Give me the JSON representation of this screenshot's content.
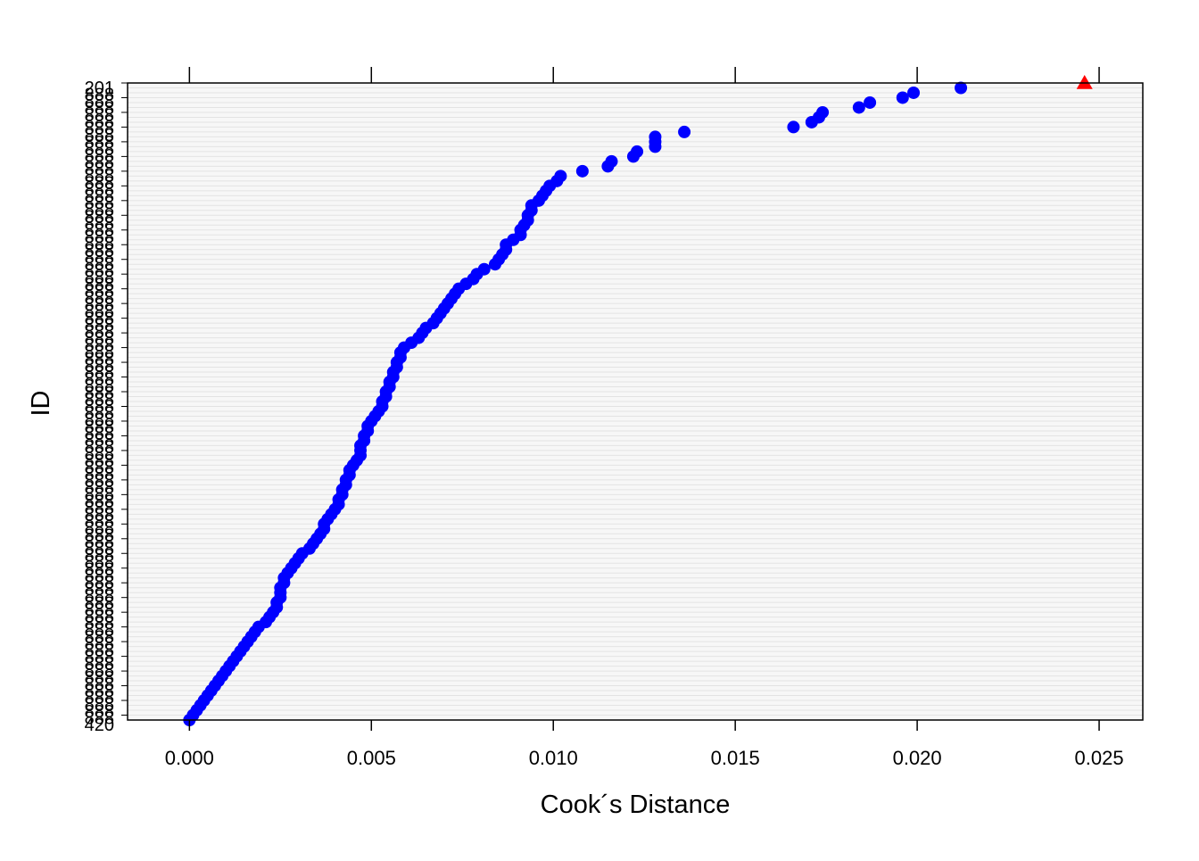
{
  "chart_data": {
    "type": "scatter",
    "title": "",
    "xlabel": "Cook´s Distance",
    "ylabel": "ID",
    "xlim": [
      -0.0017,
      0.0262
    ],
    "xticks": [
      "0.000",
      "0.005",
      "0.010",
      "0.015",
      "0.020",
      "0.025"
    ],
    "xtick_values": [
      0.0,
      0.005,
      0.01,
      0.015,
      0.02,
      0.025
    ],
    "grid": true,
    "legend": "none",
    "y_first_label": "201",
    "y_last_label": "420",
    "y_scale_control": [
      [
        1,
        1.0
      ],
      [
        10,
        0.9854
      ],
      [
        20,
        0.97
      ],
      [
        40,
        0.9496
      ],
      [
        80,
        0.9087
      ],
      [
        120,
        0.87
      ],
      [
        160,
        0.8332
      ],
      [
        200,
        0.8
      ],
      [
        240,
        0.7655
      ],
      [
        280,
        0.7412
      ],
      [
        300,
        0.7313
      ],
      [
        340,
        0.7158
      ],
      [
        370,
        0.7058
      ],
      [
        400,
        0.7
      ]
    ],
    "curve_control": [
      [
        1,
        0.0246
      ],
      [
        2,
        0.0212
      ],
      [
        3,
        0.0199
      ],
      [
        4,
        0.0196
      ],
      [
        5,
        0.0187
      ],
      [
        6,
        0.0184
      ],
      [
        7,
        0.0174
      ],
      [
        8,
        0.0173
      ],
      [
        9,
        0.0171
      ],
      [
        10,
        0.0166
      ],
      [
        11,
        0.0136
      ],
      [
        12,
        0.0128
      ],
      [
        14,
        0.0128
      ],
      [
        16,
        0.0123
      ],
      [
        18,
        0.0116
      ],
      [
        21,
        0.0108
      ],
      [
        23,
        0.0102
      ],
      [
        27,
        0.0098
      ],
      [
        30,
        0.0094
      ],
      [
        33,
        0.0093
      ],
      [
        36,
        0.0091
      ],
      [
        39,
        0.0087
      ],
      [
        42,
        0.0086
      ],
      [
        45,
        0.0081
      ],
      [
        47,
        0.0077
      ],
      [
        50,
        0.0074
      ],
      [
        53,
        0.0071
      ],
      [
        57,
        0.0068
      ],
      [
        60,
        0.0065
      ],
      [
        63,
        0.0063
      ],
      [
        67,
        0.0058
      ],
      [
        70,
        0.0057
      ],
      [
        73,
        0.0056
      ],
      [
        76,
        0.0055
      ],
      [
        80,
        0.0054
      ],
      [
        85,
        0.0053
      ],
      [
        90,
        0.0052
      ],
      [
        95,
        0.0049
      ],
      [
        98,
        0.0048
      ],
      [
        101,
        0.0047
      ],
      [
        104,
        0.0046
      ],
      [
        107,
        0.0044
      ],
      [
        110,
        0.0043
      ],
      [
        114,
        0.0042
      ],
      [
        117,
        0.0041
      ],
      [
        120,
        0.004
      ],
      [
        125,
        0.0039
      ],
      [
        130,
        0.0037
      ],
      [
        136,
        0.0036
      ],
      [
        140,
        0.0034
      ],
      [
        150,
        0.0031
      ],
      [
        160,
        0.0029
      ],
      [
        170,
        0.0027
      ],
      [
        178,
        0.0026
      ],
      [
        190,
        0.0025
      ],
      [
        200,
        0.0025
      ],
      [
        215,
        0.0024
      ],
      [
        225,
        0.0023
      ],
      [
        240,
        0.0021
      ],
      [
        255,
        0.0018
      ],
      [
        270,
        0.0016
      ],
      [
        285,
        0.0014
      ],
      [
        300,
        0.0012
      ],
      [
        320,
        0.001
      ],
      [
        335,
        0.0008
      ],
      [
        350,
        0.0006
      ],
      [
        360,
        0.0004
      ],
      [
        372,
        0.0003
      ],
      [
        385,
        0.0002
      ],
      [
        395,
        0.0001
      ],
      [
        400,
        0.0
      ]
    ],
    "series": [
      {
        "marker": "circle",
        "color": "#0000ff",
        "x": [
          0.0212,
          0.0199,
          0.0196,
          0.0187,
          0.0184,
          0.0174,
          0.0173,
          0.0171,
          0.0166,
          0.0136,
          0.0128,
          0.0128,
          0.0128,
          0.0123,
          0.0122,
          0.0116,
          0.0115,
          0.0108,
          0.0102,
          0.0101,
          0.0099,
          0.0098,
          0.0097,
          0.0096,
          0.0094,
          0.0094,
          0.0093,
          0.0093,
          0.0092,
          0.0091,
          0.0091,
          0.0089,
          0.0087,
          0.0087,
          0.0086,
          0.0085,
          0.0084,
          0.0081,
          0.0079,
          0.0078,
          0.0076,
          0.0074,
          0.0073,
          0.0072,
          0.0071,
          0.007,
          0.0069,
          0.0068,
          0.0067,
          0.0065,
          0.0064,
          0.0063,
          0.0061,
          0.0059,
          0.0058,
          0.0058,
          0.0057,
          0.0057,
          0.0056,
          0.0056,
          0.0055,
          0.0055,
          0.0054,
          0.0054,
          0.0053,
          0.0053,
          0.0052,
          0.0051,
          0.005,
          0.0049,
          0.0049,
          0.0048,
          0.0048,
          0.0047,
          0.0047,
          0.0047,
          0.0046,
          0.0045,
          0.0044,
          0.0044,
          0.0043,
          0.0043,
          0.0042,
          0.0042,
          0.0041,
          0.0041,
          0.004,
          0.0039,
          0.0038,
          0.0037,
          0.0037,
          0.0036,
          0.0035,
          0.0034,
          0.0033,
          0.0031,
          0.003,
          0.0029,
          0.0028,
          0.0027,
          0.0026,
          0.0026,
          0.0025,
          0.0025,
          0.0025,
          0.0024,
          0.0024,
          0.0023,
          0.0022,
          0.0021,
          0.0019,
          0.0018,
          0.0017,
          0.0016,
          0.0015,
          0.0014,
          0.0013,
          0.0012,
          0.0011,
          0.001,
          0.0009,
          0.0008,
          0.0007,
          0.0006,
          0.0005,
          0.0004,
          0.0003,
          0.0002,
          0.0001,
          0.0
        ]
      },
      {
        "marker": "triangle",
        "color": "#ff0000",
        "x": [
          0.0246
        ]
      }
    ]
  }
}
